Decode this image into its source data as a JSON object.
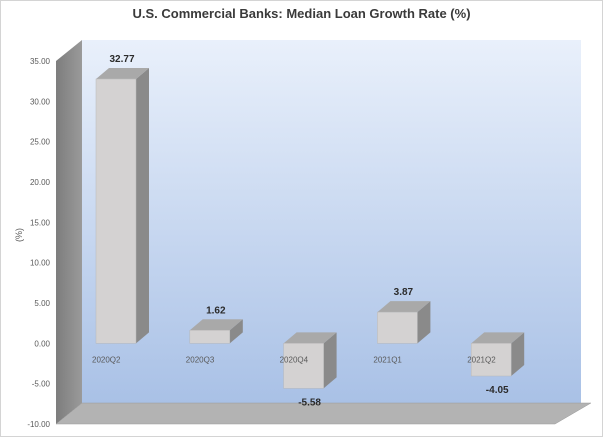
{
  "chart_data": {
    "type": "bar",
    "title": "U.S. Commercial Banks: Median Loan Growth Rate (%)",
    "ylabel": "(%)",
    "xlabel": "",
    "categories": [
      "2020Q2",
      "2020Q3",
      "2020Q4",
      "2021Q1",
      "2021Q2"
    ],
    "values": [
      32.77,
      1.62,
      -5.58,
      3.87,
      -4.05
    ],
    "data_labels": [
      "32.77",
      "1.62",
      "-5.58",
      "3.87",
      "-4.05"
    ],
    "ylim": [
      -10,
      35
    ],
    "y_ticks": [
      "35.00",
      "30.00",
      "25.00",
      "20.00",
      "15.00",
      "10.00",
      "5.00",
      "0.00",
      "-5.00",
      "-10.00"
    ],
    "grid": false,
    "legend": "none",
    "style": "3d-column",
    "colors": {
      "bar_front": "#d4d2d2",
      "bar_side": "#8a8a8a",
      "bar_top": "#a9a9a9",
      "wall_top": "#e9f0fb",
      "wall_bottom": "#a9c1e6",
      "side_wall": "#8c8c8c",
      "floor": "#b3b3b3"
    }
  }
}
